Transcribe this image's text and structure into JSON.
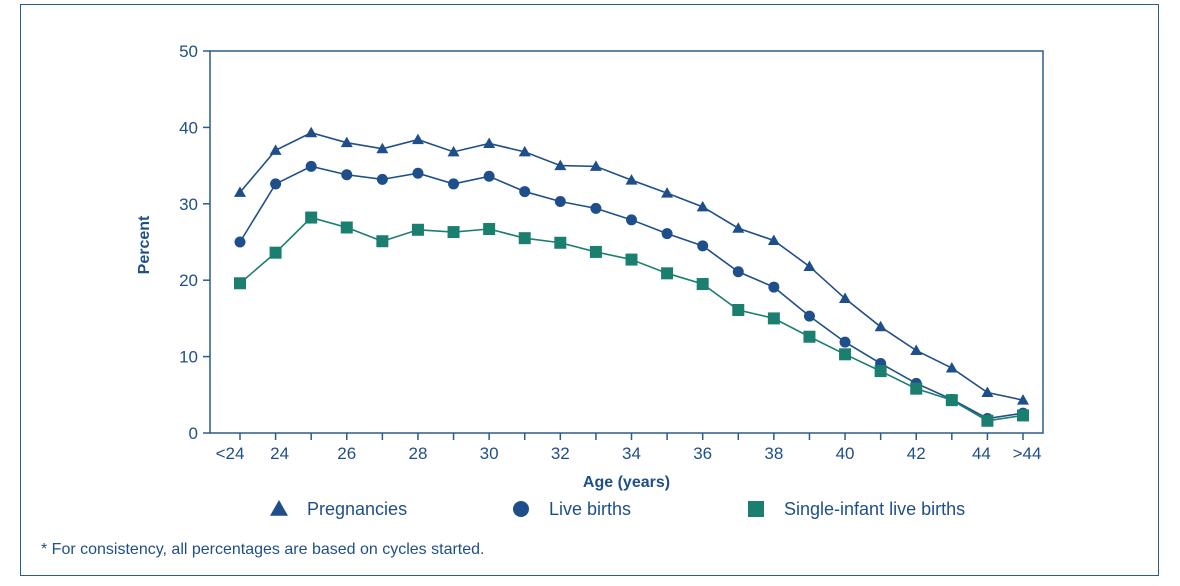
{
  "chart_data": {
    "type": "line",
    "title": "",
    "xlabel": "Age (years)",
    "ylabel": "Percent",
    "ylim": [
      0,
      50
    ],
    "yticks": [
      0,
      10,
      20,
      30,
      40,
      50
    ],
    "categories": [
      "<24",
      "24",
      "25",
      "26",
      "27",
      "28",
      "29",
      "30",
      "31",
      "32",
      "33",
      "34",
      "35",
      "36",
      "37",
      "38",
      "39",
      "40",
      "41",
      "42",
      "43",
      "44",
      ">44"
    ],
    "xtick_labels": [
      "<24",
      "24",
      "26",
      "28",
      "30",
      "32",
      "34",
      "36",
      "38",
      "40",
      "42",
      "44",
      ">44"
    ],
    "grid": false,
    "legend_position": "bottom",
    "series": [
      {
        "name": "Pregnancies",
        "marker": "triangle",
        "color": "#1f4f8a",
        "values": [
          31.5,
          37.0,
          39.3,
          38.0,
          37.2,
          38.4,
          36.8,
          37.9,
          36.8,
          35.0,
          34.9,
          33.1,
          31.4,
          29.6,
          26.8,
          25.2,
          21.8,
          17.6,
          13.9,
          10.8,
          8.5,
          5.3,
          4.3
        ]
      },
      {
        "name": "Live births",
        "marker": "circle",
        "color": "#1f4f8a",
        "values": [
          25.0,
          32.6,
          34.9,
          33.8,
          33.2,
          34.0,
          32.6,
          33.6,
          31.6,
          30.3,
          29.4,
          27.9,
          26.1,
          24.5,
          21.1,
          19.1,
          15.3,
          11.9,
          9.1,
          6.5,
          4.4,
          1.9,
          2.6
        ]
      },
      {
        "name": "Single-infant live births",
        "marker": "square",
        "color": "#1a7f6e",
        "values": [
          19.6,
          23.6,
          28.2,
          26.9,
          25.1,
          26.6,
          26.3,
          26.7,
          25.5,
          24.9,
          23.7,
          22.7,
          20.9,
          19.5,
          16.1,
          15.0,
          12.6,
          10.3,
          8.1,
          5.8,
          4.3,
          1.6,
          2.3
        ]
      }
    ],
    "footnote": "* For consistency, all percentages are based on cycles started."
  },
  "colors": {
    "axis": "#2a5c8a",
    "text": "#1f4f8a",
    "blue_series": "#1f4f8a",
    "green_series": "#1a7f6e"
  }
}
